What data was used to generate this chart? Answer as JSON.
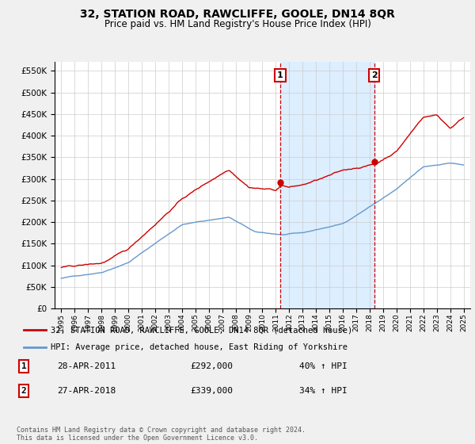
{
  "title": "32, STATION ROAD, RAWCLIFFE, GOOLE, DN14 8QR",
  "subtitle": "Price paid vs. HM Land Registry's House Price Index (HPI)",
  "property_label": "32, STATION ROAD, RAWCLIFFE, GOOLE, DN14 8QR (detached house)",
  "hpi_label": "HPI: Average price, detached house, East Riding of Yorkshire",
  "footer": "Contains HM Land Registry data © Crown copyright and database right 2024.\nThis data is licensed under the Open Government Licence v3.0.",
  "sale1_date": "28-APR-2011",
  "sale1_price": "£292,000",
  "sale1_hpi": "40% ↑ HPI",
  "sale2_date": "27-APR-2018",
  "sale2_price": "£339,000",
  "sale2_hpi": "34% ↑ HPI",
  "property_color": "#cc0000",
  "hpi_color": "#6699cc",
  "highlight_color": "#ddeeff",
  "vline_color": "#cc0000",
  "sale1_x": 2011.33,
  "sale1_y": 292000,
  "sale2_x": 2018.33,
  "sale2_y": 339000,
  "ylim": [
    0,
    570000
  ],
  "yticks": [
    0,
    50000,
    100000,
    150000,
    200000,
    250000,
    300000,
    350000,
    400000,
    450000,
    500000,
    550000
  ],
  "xlim_start": 1994.5,
  "xlim_end": 2025.5,
  "xticks": [
    1995,
    1996,
    1997,
    1998,
    1999,
    2000,
    2001,
    2002,
    2003,
    2004,
    2005,
    2006,
    2007,
    2008,
    2009,
    2010,
    2011,
    2012,
    2013,
    2014,
    2015,
    2016,
    2017,
    2018,
    2019,
    2020,
    2021,
    2022,
    2023,
    2024,
    2025
  ],
  "background_color": "#f0f0f0",
  "plot_bg_color": "#ffffff",
  "grid_color": "#cccccc"
}
